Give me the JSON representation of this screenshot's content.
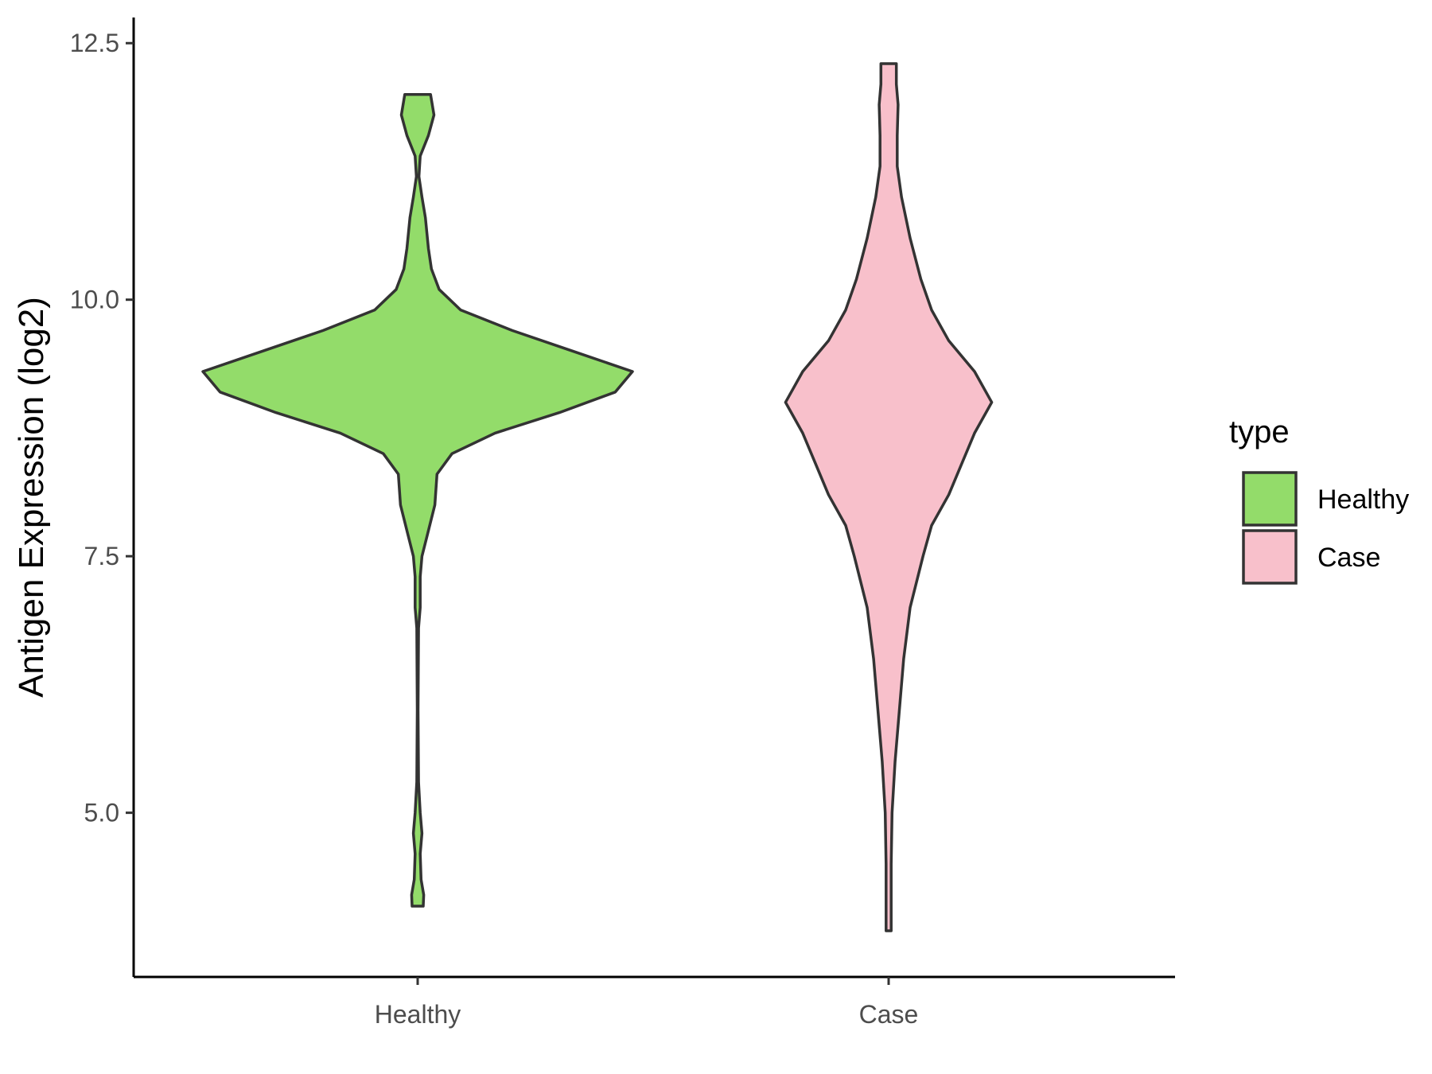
{
  "chart_data": {
    "type": "violin",
    "title": "",
    "xlabel": "",
    "ylabel": "Antigen Expression (log2)",
    "categories": [
      "Healthy",
      "Case"
    ],
    "y_ticks": [
      "5.0",
      "7.5",
      "10.0",
      "12.5"
    ],
    "ylim": [
      3.4,
      12.75
    ],
    "grid": false,
    "legend": {
      "title": "type",
      "position": "right",
      "entries": [
        {
          "label": "Healthy",
          "color": "#93dc6a"
        },
        {
          "label": "Case",
          "color": "#f8c0cb"
        }
      ]
    },
    "series": [
      {
        "category": "Healthy",
        "color": "#93dc6a",
        "y_min": 4.09,
        "y_max": 12.0,
        "density_profile": [
          [
            4.09,
            0.013
          ],
          [
            4.2,
            0.014
          ],
          [
            4.35,
            0.008
          ],
          [
            4.6,
            0.006
          ],
          [
            4.8,
            0.01
          ],
          [
            5.0,
            0.006
          ],
          [
            5.3,
            0.002
          ],
          [
            6.0,
            0.001
          ],
          [
            6.8,
            0.002
          ],
          [
            7.0,
            0.006
          ],
          [
            7.3,
            0.006
          ],
          [
            7.5,
            0.01
          ],
          [
            7.7,
            0.022
          ],
          [
            8.0,
            0.04
          ],
          [
            8.3,
            0.045
          ],
          [
            8.5,
            0.08
          ],
          [
            8.7,
            0.18
          ],
          [
            8.9,
            0.33
          ],
          [
            9.1,
            0.46
          ],
          [
            9.3,
            0.5
          ],
          [
            9.5,
            0.36
          ],
          [
            9.7,
            0.22
          ],
          [
            9.9,
            0.1
          ],
          [
            10.1,
            0.05
          ],
          [
            10.3,
            0.032
          ],
          [
            10.5,
            0.025
          ],
          [
            10.8,
            0.018
          ],
          [
            11.0,
            0.01
          ],
          [
            11.2,
            0.003
          ],
          [
            11.4,
            0.006
          ],
          [
            11.6,
            0.025
          ],
          [
            11.8,
            0.038
          ],
          [
            12.0,
            0.03
          ]
        ]
      },
      {
        "category": "Case",
        "color": "#f8c0cb",
        "y_min": 3.85,
        "y_max": 12.3,
        "density_profile": [
          [
            3.85,
            0.006
          ],
          [
            4.5,
            0.006
          ],
          [
            5.0,
            0.008
          ],
          [
            5.5,
            0.015
          ],
          [
            6.0,
            0.025
          ],
          [
            6.5,
            0.035
          ],
          [
            7.0,
            0.05
          ],
          [
            7.5,
            0.08
          ],
          [
            7.8,
            0.1
          ],
          [
            8.1,
            0.14
          ],
          [
            8.4,
            0.17
          ],
          [
            8.7,
            0.2
          ],
          [
            9.0,
            0.24
          ],
          [
            9.3,
            0.2
          ],
          [
            9.6,
            0.14
          ],
          [
            9.9,
            0.1
          ],
          [
            10.2,
            0.075
          ],
          [
            10.6,
            0.05
          ],
          [
            11.0,
            0.03
          ],
          [
            11.3,
            0.02
          ],
          [
            11.6,
            0.02
          ],
          [
            11.9,
            0.022
          ],
          [
            12.1,
            0.018
          ],
          [
            12.3,
            0.018
          ]
        ]
      }
    ]
  }
}
